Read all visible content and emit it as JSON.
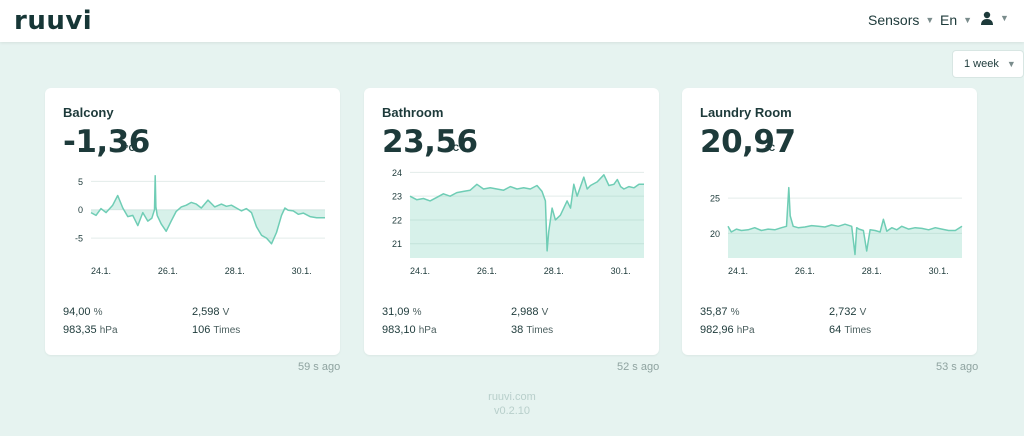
{
  "header": {
    "logo": "ruuvi",
    "nav_sensors": "Sensors",
    "nav_lang": "En",
    "user_icon": "user-icon"
  },
  "range_selector": {
    "value": "1 week"
  },
  "accent_color": "#6fcdb5",
  "cards": [
    {
      "name": "Balcony",
      "temperature": "-1,36",
      "temperature_unit": "°C",
      "humidity": "94,00",
      "humidity_unit": "%",
      "voltage": "2,598",
      "voltage_unit": "V",
      "pressure": "983,35",
      "pressure_unit": "hPa",
      "movements": "106",
      "movements_unit": "Times",
      "updated": "59 s ago",
      "chart_data": {
        "type": "area",
        "yticks": [
          "5",
          "0",
          "-5"
        ],
        "ylim": [
          -8.5,
          7
        ],
        "xticks": [
          "24.1.",
          "26.1.",
          "28.1.",
          "30.1."
        ],
        "xlim": [
          23.8,
          30.8
        ],
        "x": [
          23.8,
          23.95,
          24.1,
          24.25,
          24.45,
          24.6,
          24.75,
          24.9,
          25.05,
          25.2,
          25.35,
          25.5,
          25.62,
          25.7,
          25.72,
          25.74,
          25.78,
          25.9,
          26.05,
          26.2,
          26.35,
          26.5,
          26.65,
          26.8,
          26.95,
          27.1,
          27.3,
          27.5,
          27.7,
          27.85,
          28.0,
          28.15,
          28.3,
          28.45,
          28.6,
          28.75,
          28.9,
          29.05,
          29.2,
          29.35,
          29.5,
          29.6,
          29.7,
          29.85,
          30.0,
          30.15,
          30.35,
          30.55,
          30.8
        ],
        "y": [
          -0.5,
          -1.0,
          0.2,
          -0.5,
          0.8,
          2.5,
          0.3,
          -1.2,
          -1.0,
          -2.8,
          -0.5,
          -2.0,
          -1.5,
          0.0,
          6.0,
          0.5,
          -1.0,
          -2.5,
          -3.8,
          -2.0,
          -0.3,
          0.5,
          0.8,
          1.3,
          1.0,
          0.3,
          1.7,
          0.5,
          1.0,
          0.6,
          0.8,
          0.3,
          -0.2,
          0.2,
          -0.5,
          -3.0,
          -4.5,
          -5.0,
          -6.0,
          -4.0,
          -1.0,
          0.3,
          -0.1,
          -0.2,
          -0.8,
          -0.6,
          -1.2,
          -1.4,
          -1.4
        ]
      }
    },
    {
      "name": "Bathroom",
      "temperature": "23,56",
      "temperature_unit": "°C",
      "humidity": "31,09",
      "humidity_unit": "%",
      "voltage": "2,988",
      "voltage_unit": "V",
      "pressure": "983,10",
      "pressure_unit": "hPa",
      "movements": "38",
      "movements_unit": "Times",
      "updated": "52 s ago",
      "chart_data": {
        "type": "area",
        "yticks": [
          "24",
          "23",
          "22",
          "21"
        ],
        "ylim": [
          20.4,
          24.1
        ],
        "xticks": [
          "24.1.",
          "26.1.",
          "28.1.",
          "30.1."
        ],
        "xlim": [
          23.8,
          30.8
        ],
        "x": [
          23.8,
          24.0,
          24.2,
          24.4,
          24.6,
          24.8,
          25.0,
          25.2,
          25.4,
          25.6,
          25.8,
          26.0,
          26.2,
          26.4,
          26.6,
          26.8,
          27.0,
          27.2,
          27.4,
          27.6,
          27.75,
          27.85,
          27.9,
          27.95,
          28.05,
          28.15,
          28.3,
          28.5,
          28.6,
          28.7,
          28.8,
          29.0,
          29.1,
          29.2,
          29.4,
          29.6,
          29.75,
          29.9,
          30.0,
          30.1,
          30.2,
          30.35,
          30.5,
          30.65,
          30.8
        ],
        "y": [
          23.0,
          22.85,
          22.9,
          22.8,
          22.95,
          23.1,
          23.0,
          23.15,
          23.2,
          23.25,
          23.5,
          23.3,
          23.35,
          23.3,
          23.25,
          23.4,
          23.3,
          23.35,
          23.3,
          23.45,
          23.2,
          22.8,
          20.7,
          21.5,
          22.5,
          22.0,
          22.2,
          22.8,
          22.5,
          23.5,
          23.0,
          23.8,
          23.3,
          23.45,
          23.6,
          23.9,
          23.45,
          23.5,
          23.7,
          23.4,
          23.3,
          23.4,
          23.35,
          23.5,
          23.5
        ]
      }
    },
    {
      "name": "Laundry Room",
      "temperature": "20,97",
      "temperature_unit": "°C",
      "humidity": "35,87",
      "humidity_unit": "%",
      "voltage": "2,732",
      "voltage_unit": "V",
      "pressure": "982,96",
      "pressure_unit": "hPa",
      "movements": "64",
      "movements_unit": "Times",
      "updated": "53 s ago",
      "chart_data": {
        "type": "area",
        "yticks": [
          "25",
          "20"
        ],
        "ylim": [
          16.5,
          29
        ],
        "xticks": [
          "24.1.",
          "26.1.",
          "28.1.",
          "30.1."
        ],
        "xlim": [
          23.8,
          30.8
        ],
        "x": [
          23.8,
          23.9,
          24.05,
          24.2,
          24.4,
          24.6,
          24.8,
          25.0,
          25.2,
          25.4,
          25.55,
          25.62,
          25.66,
          25.75,
          25.9,
          26.1,
          26.3,
          26.5,
          26.7,
          26.9,
          27.1,
          27.3,
          27.5,
          27.6,
          27.65,
          27.72,
          27.85,
          27.95,
          28.05,
          28.2,
          28.35,
          28.45,
          28.55,
          28.7,
          28.85,
          29.0,
          29.2,
          29.4,
          29.6,
          29.8,
          30.0,
          30.2,
          30.4,
          30.6,
          30.8
        ],
        "y": [
          21.0,
          20.2,
          20.6,
          20.4,
          20.5,
          20.8,
          20.4,
          20.6,
          20.5,
          20.8,
          21.0,
          26.5,
          22.5,
          21.0,
          20.8,
          20.9,
          21.1,
          21.0,
          20.9,
          21.2,
          21.0,
          21.3,
          21.0,
          17.0,
          20.8,
          20.6,
          20.4,
          17.5,
          20.5,
          20.4,
          20.2,
          22.0,
          20.3,
          20.8,
          20.5,
          21.0,
          20.6,
          20.8,
          20.7,
          20.5,
          20.8,
          20.6,
          20.4,
          20.4,
          21.0
        ]
      }
    }
  ],
  "footer": {
    "site": "ruuvi.com",
    "version": "v0.2.10"
  }
}
